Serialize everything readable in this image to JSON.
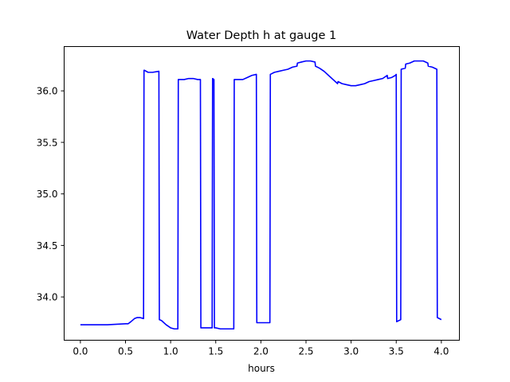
{
  "chart_data": {
    "type": "line",
    "title": "Water Depth h at gauge 1",
    "xlabel": "hours",
    "ylabel": "",
    "xlim": [
      -0.18,
      4.2
    ],
    "ylim": [
      33.58,
      36.43
    ],
    "xticks": [
      0.0,
      0.5,
      1.0,
      1.5,
      2.0,
      2.5,
      3.0,
      3.5,
      4.0
    ],
    "xtick_labels": [
      "0.0",
      "0.5",
      "1.0",
      "1.5",
      "2.0",
      "2.5",
      "3.0",
      "3.5",
      "4.0"
    ],
    "yticks": [
      34.0,
      34.5,
      35.0,
      35.5,
      36.0
    ],
    "ytick_labels": [
      "34.0",
      "34.5",
      "35.0",
      "35.5",
      "36.0"
    ],
    "grid": false,
    "legend": false,
    "series": [
      {
        "color": "#0000ff",
        "x": [
          0.0,
          0.1,
          0.2,
          0.3,
          0.4,
          0.5,
          0.53,
          0.56,
          0.6,
          0.63,
          0.66,
          0.7,
          0.705,
          0.71,
          0.75,
          0.8,
          0.87,
          0.875,
          0.9,
          0.95,
          1.0,
          1.04,
          1.08,
          1.085,
          1.1,
          1.15,
          1.2,
          1.25,
          1.3,
          1.33,
          1.335,
          1.35,
          1.4,
          1.45,
          1.46,
          1.465,
          1.48,
          1.485,
          1.5,
          1.55,
          1.6,
          1.65,
          1.7,
          1.705,
          1.75,
          1.8,
          1.85,
          1.9,
          1.95,
          1.955,
          2.0,
          2.05,
          2.1,
          2.105,
          2.15,
          2.2,
          2.25,
          2.3,
          2.35,
          2.4,
          2.405,
          2.45,
          2.5,
          2.55,
          2.6,
          2.605,
          2.65,
          2.7,
          2.75,
          2.8,
          2.85,
          2.855,
          2.9,
          2.95,
          3.0,
          3.05,
          3.1,
          3.15,
          3.2,
          3.25,
          3.3,
          3.35,
          3.4,
          3.405,
          3.45,
          3.49,
          3.5,
          3.505,
          3.55,
          3.555,
          3.6,
          3.605,
          3.65,
          3.7,
          3.75,
          3.8,
          3.85,
          3.855,
          3.9,
          3.95,
          3.955,
          4.0
        ],
        "y": [
          33.73,
          33.73,
          33.73,
          33.73,
          33.735,
          33.74,
          33.74,
          33.76,
          33.79,
          33.8,
          33.8,
          33.79,
          36.2,
          36.2,
          36.18,
          36.18,
          36.19,
          33.78,
          33.77,
          33.73,
          33.7,
          33.69,
          33.69,
          36.11,
          36.11,
          36.11,
          36.12,
          36.12,
          36.11,
          36.11,
          33.7,
          33.7,
          33.7,
          33.7,
          33.7,
          36.12,
          36.11,
          33.7,
          33.7,
          33.69,
          33.69,
          33.69,
          33.69,
          36.11,
          36.11,
          36.11,
          36.13,
          36.15,
          36.16,
          33.75,
          33.75,
          33.75,
          33.75,
          36.16,
          36.18,
          36.19,
          36.2,
          36.21,
          36.23,
          36.24,
          36.27,
          36.28,
          36.29,
          36.29,
          36.28,
          36.24,
          36.22,
          36.19,
          36.15,
          36.11,
          36.07,
          36.09,
          36.07,
          36.06,
          36.05,
          36.05,
          36.06,
          36.07,
          36.09,
          36.1,
          36.11,
          36.12,
          36.15,
          36.12,
          36.13,
          36.15,
          36.16,
          33.76,
          33.78,
          36.21,
          36.22,
          36.26,
          36.27,
          36.29,
          36.29,
          36.29,
          36.27,
          36.24,
          36.23,
          36.21,
          33.8,
          33.78
        ]
      }
    ]
  }
}
